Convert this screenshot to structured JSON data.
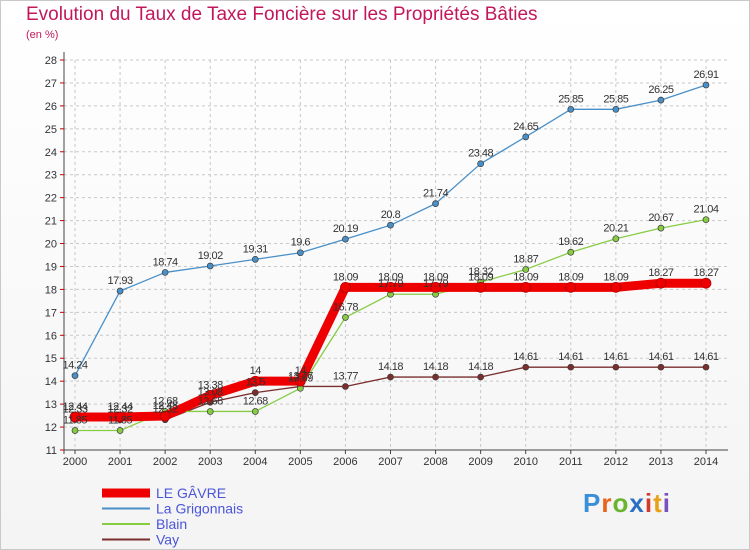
{
  "title": "Evolution du Taux de Taxe Foncière sur les Propriétés Bâties",
  "subtitle": "(en %)",
  "logo": "Proxiti",
  "chart_data": {
    "type": "line",
    "title": "Evolution du Taux de Taxe Foncière sur les Propriétés Bâties",
    "ylabel": "(en %)",
    "xlabel": "",
    "ylim": [
      11,
      28
    ],
    "yticks": [
      "11",
      "12",
      "13",
      "14",
      "15",
      "16",
      "17",
      "18",
      "19",
      "20",
      "21",
      "22",
      "23",
      "24",
      "25",
      "26",
      "27",
      "28"
    ],
    "x": [
      "2000",
      "2001",
      "2002",
      "2003",
      "2004",
      "2005",
      "2006",
      "2007",
      "2008",
      "2009",
      "2010",
      "2011",
      "2012",
      "2013",
      "2014"
    ],
    "legend_position": "bottom-left",
    "series": [
      {
        "name": "LE GÂVRE",
        "color": "#ee0000",
        "values": [
          12.44,
          12.44,
          12.48,
          13.38,
          14,
          14,
          18.09,
          18.09,
          18.09,
          18.09,
          18.09,
          18.09,
          18.09,
          18.27,
          18.27
        ],
        "labels": [
          "12.44",
          "12.44",
          "12.48",
          "13.38",
          "14",
          "14",
          "18.09",
          "18.09",
          "18.09",
          "18.09",
          "18.09",
          "18.09",
          "18.09",
          "18.27",
          "18.27"
        ]
      },
      {
        "name": "La Grigonnais",
        "color": "#4a90c8",
        "values": [
          14.24,
          17.93,
          18.74,
          19.02,
          19.31,
          19.6,
          20.19,
          20.8,
          21.74,
          23.48,
          24.65,
          25.85,
          25.85,
          26.25,
          26.91
        ],
        "labels": [
          "14.24",
          "17.93",
          "18.74",
          "19.02",
          "19.31",
          "19.6",
          "20.19",
          "20.8",
          "21.74",
          "23.48",
          "24.65",
          "25.85",
          "25.85",
          "26.25",
          "26.91"
        ]
      },
      {
        "name": "Blain",
        "color": "#88cc44",
        "values": [
          11.85,
          11.85,
          12.68,
          12.68,
          12.68,
          13.69,
          16.78,
          17.79,
          17.79,
          18.32,
          18.87,
          19.62,
          20.21,
          20.67,
          21.04
        ],
        "labels": [
          "11.85",
          "11.85",
          "12.68",
          "12.68",
          "12.68",
          "13.69",
          "16.78",
          "17.79",
          "17.79",
          "18.32",
          "18.87",
          "19.62",
          "20.21",
          "20.67",
          "21.04"
        ]
      },
      {
        "name": "Vay",
        "color": "#7a2e2e",
        "values": [
          12.33,
          12.32,
          12.32,
          13.08,
          13.5,
          13.77,
          13.77,
          14.18,
          14.18,
          14.18,
          14.61,
          14.61,
          14.61,
          14.61,
          14.61
        ],
        "labels": [
          "12.33",
          "12.32",
          "12.32",
          "13.08",
          "13.5",
          "13.77",
          "13.77",
          "14.18",
          "14.18",
          "14.18",
          "14.61",
          "14.61",
          "14.61",
          "14.61",
          "14.61"
        ]
      }
    ]
  }
}
